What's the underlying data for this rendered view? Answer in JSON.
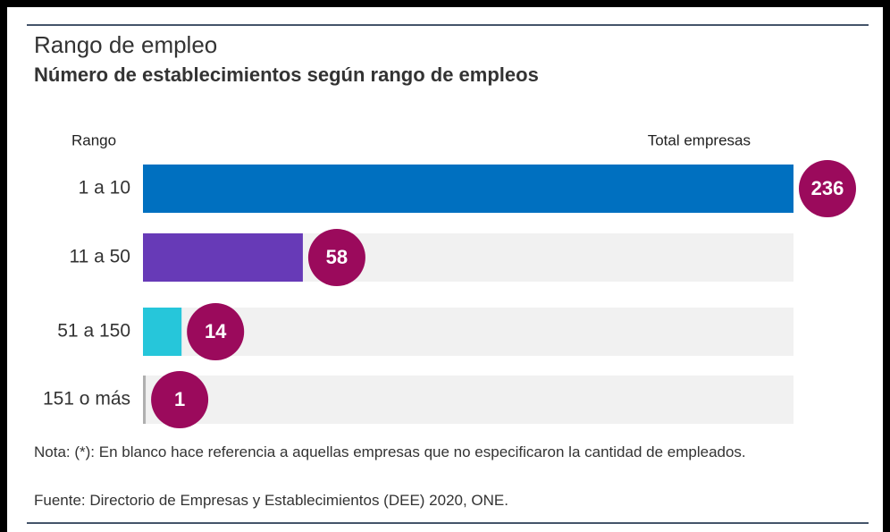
{
  "chart_data": {
    "type": "bar",
    "orientation": "horizontal",
    "title": "Rango de empleo",
    "subtitle": "Número de establecimientos según rango de empleos",
    "category_header": "Rango",
    "value_header": "Total empresas",
    "categories": [
      "1 a 10",
      "11 a 50",
      "51 a 150",
      "151 o más"
    ],
    "values": [
      236,
      58,
      14,
      1
    ],
    "colors": [
      "#0070c0",
      "#673ab7",
      "#26c6da",
      "#b0b0b0"
    ],
    "label_color": "#9b0a5c",
    "track_color": "#f1f1f1",
    "xlim": [
      0,
      236
    ],
    "note": "Nota: (*): En blanco hace referencia a aquellas empresas que no especificaron la cantidad de empleados.",
    "source": "Fuente: Directorio de Empresas y Establecimientos (DEE) 2020, ONE."
  }
}
